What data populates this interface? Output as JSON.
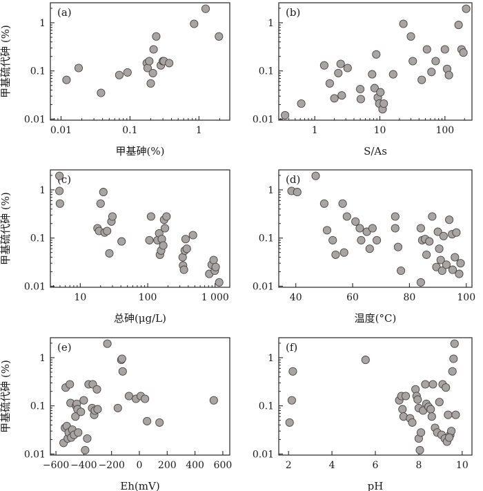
{
  "chart_data": [
    {
      "id": "a",
      "type": "scatter",
      "panel_label": "(a)",
      "xlabel": "甲基砷(%)",
      "ylabel": "甲基硫代砷 (%)",
      "xscale": "log",
      "yscale": "log",
      "xlim": [
        0.007,
        2.8
      ],
      "ylim": [
        0.0095,
        2.6
      ],
      "xticks": [
        0.01,
        0.1,
        1
      ],
      "xticklabels": [
        "0.01",
        "0.1",
        "1"
      ],
      "yticks": [
        0.01,
        0.1,
        1
      ],
      "yticklabels": [
        "0.01",
        "0.1",
        "1"
      ],
      "points": [
        [
          0.012,
          0.065
        ],
        [
          0.018,
          0.115
        ],
        [
          0.038,
          0.035
        ],
        [
          0.07,
          0.082
        ],
        [
          0.092,
          0.093
        ],
        [
          0.175,
          0.145
        ],
        [
          0.18,
          0.115
        ],
        [
          0.19,
          0.16
        ],
        [
          0.2,
          0.055
        ],
        [
          0.215,
          0.09
        ],
        [
          0.22,
          0.28
        ],
        [
          0.24,
          0.52
        ],
        [
          0.28,
          0.13
        ],
        [
          0.3,
          0.16
        ],
        [
          0.31,
          0.16
        ],
        [
          0.37,
          0.145
        ],
        [
          0.85,
          0.95
        ],
        [
          1.25,
          1.95
        ],
        [
          1.95,
          0.52
        ]
      ]
    },
    {
      "id": "b",
      "type": "scatter",
      "panel_label": "(b)",
      "xlabel": "S/As",
      "ylabel": "",
      "xscale": "log",
      "yscale": "log",
      "xlim": [
        0.28,
        260
      ],
      "ylim": [
        0.0095,
        2.6
      ],
      "xticks": [
        1,
        10,
        100
      ],
      "xticklabels": [
        "1",
        "10",
        "100"
      ],
      "yticks": [
        0.01,
        0.1,
        1
      ],
      "yticklabels": [
        "0.01",
        "0.1",
        "1"
      ],
      "points": [
        [
          0.35,
          0.012
        ],
        [
          0.62,
          0.021
        ],
        [
          1.4,
          0.13
        ],
        [
          1.7,
          0.055
        ],
        [
          2.0,
          0.027
        ],
        [
          2.3,
          0.09
        ],
        [
          2.5,
          0.14
        ],
        [
          2.6,
          0.031
        ],
        [
          3.2,
          0.115
        ],
        [
          5.0,
          0.042
        ],
        [
          5.1,
          0.026
        ],
        [
          7.6,
          0.085
        ],
        [
          8.3,
          0.044
        ],
        [
          8.8,
          0.22
        ],
        [
          9.3,
          0.028
        ],
        [
          9.8,
          0.021
        ],
        [
          10.2,
          0.036
        ],
        [
          11.0,
          0.016
        ],
        [
          11.5,
          0.021
        ],
        [
          16,
          0.085
        ],
        [
          23,
          0.95
        ],
        [
          30,
          0.52
        ],
        [
          32,
          0.16
        ],
        [
          44,
          0.065
        ],
        [
          53,
          0.28
        ],
        [
          62,
          0.095
        ],
        [
          72,
          0.16
        ],
        [
          100,
          0.28
        ],
        [
          108,
          0.11
        ],
        [
          115,
          0.082
        ],
        [
          162,
          0.9
        ],
        [
          180,
          0.28
        ],
        [
          192,
          0.24
        ],
        [
          212,
          1.95
        ]
      ]
    },
    {
      "id": "c",
      "type": "scatter",
      "panel_label": "(c)",
      "xlabel": "总砷(μg/L)",
      "ylabel": "甲基硫代砷 (%)",
      "xscale": "log",
      "yscale": "log",
      "xlim": [
        3.6,
        1650
      ],
      "ylim": [
        0.0095,
        2.6
      ],
      "xticks": [
        10,
        100,
        1000
      ],
      "xticklabels": [
        "10",
        "100",
        "1 000"
      ],
      "yticks": [
        0.01,
        0.1,
        1
      ],
      "yticklabels": [
        "0.01",
        "0.1",
        "1"
      ],
      "points": [
        [
          4.9,
          1.95
        ],
        [
          4.9,
          0.95
        ],
        [
          5.0,
          0.52
        ],
        [
          18,
          0.16
        ],
        [
          19,
          0.14
        ],
        [
          20,
          0.52
        ],
        [
          22,
          0.9
        ],
        [
          23,
          0.13
        ],
        [
          25,
          0.14
        ],
        [
          27,
          0.048
        ],
        [
          29,
          0.22
        ],
        [
          30,
          0.28
        ],
        [
          41,
          0.085
        ],
        [
          106,
          0.09
        ],
        [
          112,
          0.28
        ],
        [
          140,
          0.09
        ],
        [
          148,
          0.125
        ],
        [
          152,
          0.045
        ],
        [
          158,
          0.055
        ],
        [
          162,
          0.095
        ],
        [
          170,
          0.07
        ],
        [
          175,
          0.24
        ],
        [
          180,
          0.16
        ],
        [
          190,
          0.28
        ],
        [
          330,
          0.04
        ],
        [
          335,
          0.027
        ],
        [
          345,
          0.022
        ],
        [
          355,
          0.055
        ],
        [
          365,
          0.095
        ],
        [
          380,
          0.06
        ],
        [
          470,
          0.115
        ],
        [
          820,
          0.018
        ],
        [
          890,
          0.028
        ],
        [
          950,
          0.035
        ],
        [
          990,
          0.021
        ],
        [
          1020,
          0.025
        ],
        [
          1150,
          0.012
        ]
      ]
    },
    {
      "id": "d",
      "type": "scatter",
      "panel_label": "(d)",
      "xlabel": "温度(°C)",
      "ylabel": "",
      "xscale": "linear",
      "yscale": "log",
      "xlim": [
        34,
        102
      ],
      "ylim": [
        0.0095,
        2.6
      ],
      "xticks": [
        40,
        60,
        80,
        100
      ],
      "xticklabels": [
        "40",
        "60",
        "80",
        "100"
      ],
      "yticks": [
        0.01,
        0.1,
        1
      ],
      "yticklabels": [
        "0.01",
        "0.1",
        "1"
      ],
      "points": [
        [
          38.5,
          0.95
        ],
        [
          40.5,
          0.9
        ],
        [
          47,
          1.95
        ],
        [
          50,
          0.52
        ],
        [
          51,
          0.145
        ],
        [
          53,
          0.09
        ],
        [
          54,
          0.045
        ],
        [
          56.5,
          0.52
        ],
        [
          57,
          0.05
        ],
        [
          58,
          0.28
        ],
        [
          61,
          0.22
        ],
        [
          62.5,
          0.16
        ],
        [
          63,
          0.09
        ],
        [
          65,
          0.135
        ],
        [
          66,
          0.06
        ],
        [
          67,
          0.16
        ],
        [
          68.5,
          0.09
        ],
        [
          75,
          0.28
        ],
        [
          75,
          0.16
        ],
        [
          76,
          0.065
        ],
        [
          77,
          0.021
        ],
        [
          84,
          0.16
        ],
        [
          84,
          0.012
        ],
        [
          84.5,
          0.09
        ],
        [
          85.5,
          0.095
        ],
        [
          86,
          0.045
        ],
        [
          87,
          0.085
        ],
        [
          88,
          0.28
        ],
        [
          89.5,
          0.025
        ],
        [
          90,
          0.135
        ],
        [
          90.5,
          0.06
        ],
        [
          91,
          0.035
        ],
        [
          91.5,
          0.021
        ],
        [
          92,
          0.11
        ],
        [
          93,
          0.028
        ],
        [
          94,
          0.24
        ],
        [
          95,
          0.12
        ],
        [
          95.2,
          0.022
        ],
        [
          96,
          0.04
        ],
        [
          96.5,
          0.13
        ],
        [
          97.5,
          0.018
        ],
        [
          98,
          0.03
        ]
      ]
    },
    {
      "id": "e",
      "type": "scatter",
      "panel_label": "(e)",
      "xlabel": "Eh(mV)",
      "ylabel": "甲基硫代砷 (%)",
      "xscale": "linear",
      "yscale": "log",
      "xlim": [
        -640,
        650
      ],
      "ylim": [
        0.0095,
        2.6
      ],
      "xticks": [
        -600,
        -400,
        -200,
        0,
        200,
        400,
        600
      ],
      "xticklabels": [
        "−600",
        "−400",
        "−200",
        "0",
        "200",
        "400",
        "600"
      ],
      "yticks": [
        0.01,
        0.1,
        1
      ],
      "yticklabels": [
        "0.01",
        "0.1",
        "1"
      ],
      "points": [
        [
          -545,
          0.017
        ],
        [
          -535,
          0.035
        ],
        [
          -530,
          0.24
        ],
        [
          -522,
          0.038
        ],
        [
          -515,
          0.021
        ],
        [
          -508,
          0.028
        ],
        [
          -500,
          0.28
        ],
        [
          -495,
          0.115
        ],
        [
          -490,
          0.022
        ],
        [
          -482,
          0.032
        ],
        [
          -470,
          0.025
        ],
        [
          -460,
          0.06
        ],
        [
          -455,
          0.1
        ],
        [
          -450,
          0.11
        ],
        [
          -445,
          0.085
        ],
        [
          -440,
          0.028
        ],
        [
          -420,
          0.075
        ],
        [
          -400,
          0.13
        ],
        [
          -390,
          0.012
        ],
        [
          -375,
          0.021
        ],
        [
          -365,
          0.28
        ],
        [
          -340,
          0.09
        ],
        [
          -335,
          0.28
        ],
        [
          -325,
          0.065
        ],
        [
          -320,
          0.08
        ],
        [
          -305,
          0.22
        ],
        [
          -300,
          0.085
        ],
        [
          -230,
          1.95
        ],
        [
          -155,
          0.09
        ],
        [
          -130,
          0.9
        ],
        [
          -125,
          0.95
        ],
        [
          -120,
          0.52
        ],
        [
          -75,
          0.16
        ],
        [
          -25,
          0.14
        ],
        [
          10,
          0.16
        ],
        [
          40,
          0.14
        ],
        [
          55,
          0.048
        ],
        [
          145,
          0.045
        ],
        [
          535,
          0.13
        ]
      ]
    },
    {
      "id": "f",
      "type": "scatter",
      "panel_label": "(f)",
      "xlabel": "pH",
      "ylabel": "",
      "xscale": "linear",
      "yscale": "log",
      "xlim": [
        1.55,
        10.45
      ],
      "ylim": [
        0.0095,
        2.6
      ],
      "xticks": [
        2,
        4,
        6,
        8,
        10
      ],
      "xticklabels": [
        "2",
        "4",
        "6",
        "8",
        "10"
      ],
      "yticks": [
        0.01,
        0.1,
        1
      ],
      "yticklabels": [
        "0.01",
        "0.1",
        "1"
      ],
      "points": [
        [
          2.05,
          0.045
        ],
        [
          2.15,
          0.13
        ],
        [
          2.2,
          0.52
        ],
        [
          5.55,
          0.9
        ],
        [
          7.1,
          0.13
        ],
        [
          7.2,
          0.16
        ],
        [
          7.25,
          0.085
        ],
        [
          7.3,
          0.06
        ],
        [
          7.4,
          0.16
        ],
        [
          7.6,
          0.055
        ],
        [
          7.7,
          0.045
        ],
        [
          7.85,
          0.22
        ],
        [
          7.9,
          0.16
        ],
        [
          7.95,
          0.135
        ],
        [
          8.0,
          0.09
        ],
        [
          8.0,
          0.021
        ],
        [
          8.05,
          0.012
        ],
        [
          8.1,
          0.028
        ],
        [
          8.2,
          0.08
        ],
        [
          8.3,
          0.28
        ],
        [
          8.35,
          0.11
        ],
        [
          8.45,
          0.095
        ],
        [
          8.55,
          0.085
        ],
        [
          8.6,
          0.06
        ],
        [
          8.65,
          0.28
        ],
        [
          8.75,
          0.035
        ],
        [
          8.85,
          0.028
        ],
        [
          8.95,
          0.12
        ],
        [
          9.05,
          0.025
        ],
        [
          9.1,
          0.28
        ],
        [
          9.2,
          0.021
        ],
        [
          9.25,
          0.24
        ],
        [
          9.3,
          0.018
        ],
        [
          9.35,
          0.065
        ],
        [
          9.45,
          0.025
        ],
        [
          9.5,
          0.03
        ],
        [
          9.55,
          0.52
        ],
        [
          9.6,
          0.95
        ],
        [
          9.65,
          1.95
        ],
        [
          9.7,
          0.065
        ],
        [
          9.4,
          0.022
        ]
      ]
    }
  ]
}
